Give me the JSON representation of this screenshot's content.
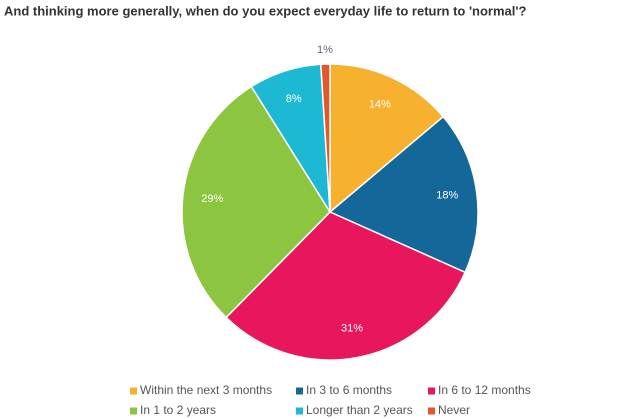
{
  "chart_data": {
    "type": "pie",
    "title": "And thinking more generally, when do you expect everyday life to return to 'normal'?",
    "categories": [
      "Within the next 3 months",
      "In 3 to 6 months",
      "In 6 to 12 months",
      "In 1 to 2 years",
      "Longer than 2 years",
      "Never"
    ],
    "values": [
      14,
      18,
      31,
      29,
      8,
      1
    ],
    "value_labels": [
      "14%",
      "18%",
      "31%",
      "29%",
      "8%",
      "1%"
    ],
    "colors": [
      "#f8b12f",
      "#136899",
      "#e8175d",
      "#8cc540",
      "#1db9d4",
      "#e3572b"
    ]
  }
}
